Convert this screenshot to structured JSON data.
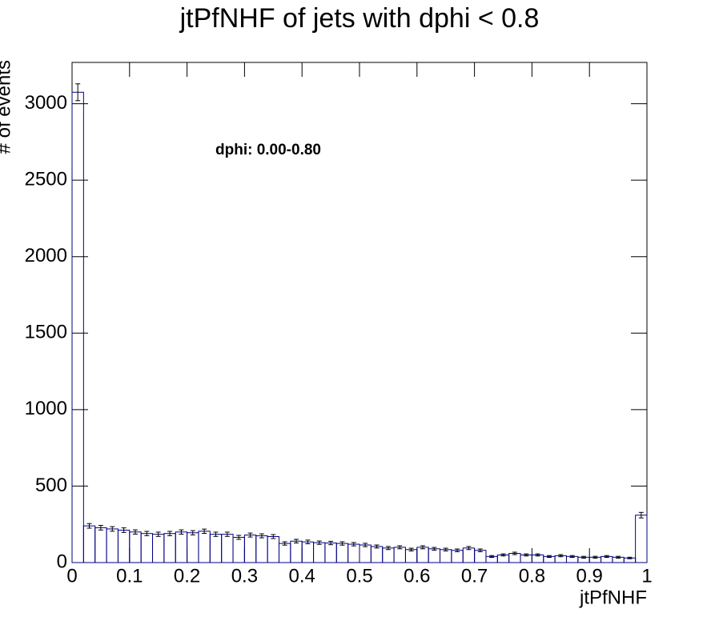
{
  "chart_data": {
    "type": "histogram",
    "title": "jtPfNHF of jets with dphi < 0.8",
    "xlabel": "jtPfNHF",
    "ylabel": "# of events",
    "annotation": "dphi: 0.00-0.80",
    "color": "#000080",
    "bins": [
      0,
      0.02,
      0.04,
      0.06,
      0.08,
      0.1,
      0.12,
      0.14,
      0.16,
      0.18,
      0.2,
      0.22,
      0.24,
      0.26,
      0.28,
      0.3,
      0.32,
      0.34,
      0.36,
      0.38,
      0.4,
      0.42,
      0.44,
      0.46,
      0.48,
      0.5,
      0.52,
      0.54,
      0.56,
      0.58,
      0.6,
      0.62,
      0.64,
      0.66,
      0.68,
      0.7,
      0.72,
      0.74,
      0.76,
      0.78,
      0.8,
      0.82,
      0.84,
      0.86,
      0.88,
      0.9,
      0.92,
      0.94,
      0.96,
      0.98,
      1
    ],
    "counts": [
      3075,
      240,
      228,
      220,
      212,
      200,
      190,
      185,
      190,
      200,
      195,
      205,
      185,
      185,
      165,
      180,
      175,
      170,
      125,
      140,
      135,
      130,
      128,
      125,
      120,
      115,
      105,
      95,
      100,
      85,
      100,
      90,
      85,
      80,
      95,
      80,
      40,
      50,
      60,
      50,
      50,
      40,
      45,
      40,
      35,
      35,
      40,
      35,
      30,
      310
    ],
    "errors": [
      55,
      15,
      15,
      15,
      15,
      14,
      14,
      14,
      14,
      14,
      14,
      14,
      14,
      14,
      13,
      13,
      13,
      13,
      11,
      12,
      12,
      11,
      11,
      11,
      11,
      11,
      10,
      10,
      10,
      9,
      10,
      9,
      9,
      9,
      10,
      9,
      6,
      7,
      8,
      7,
      7,
      6,
      7,
      6,
      6,
      6,
      6,
      6,
      5,
      18
    ],
    "xlim": [
      0,
      1
    ],
    "ylim": [
      0,
      3270
    ],
    "xticks": [
      0,
      0.1,
      0.2,
      0.3,
      0.4,
      0.5,
      0.6,
      0.7,
      0.8,
      0.9,
      1
    ],
    "yticks": [
      0,
      500,
      1000,
      1500,
      2000,
      2500,
      3000
    ]
  }
}
